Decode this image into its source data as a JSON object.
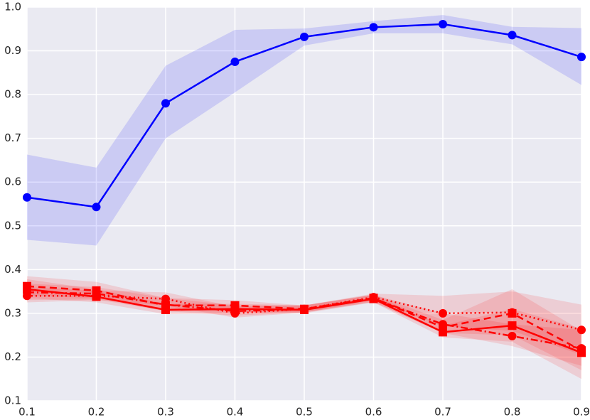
{
  "chart_data": {
    "type": "line",
    "x": [
      0.1,
      0.2,
      0.3,
      0.4,
      0.5,
      0.6,
      0.7,
      0.8,
      0.9
    ],
    "xlim": [
      0.1,
      0.9
    ],
    "xticks": [
      0.1,
      0.2,
      0.3,
      0.4,
      0.5,
      0.6,
      0.7,
      0.8,
      0.9
    ],
    "ylim": [
      0.1,
      1.0
    ],
    "yticks": [
      0.1,
      0.2,
      0.3,
      0.4,
      0.5,
      0.6,
      0.7,
      0.8,
      0.9,
      {
        "value": 1.0,
        "label": "1.0"
      }
    ],
    "grid": true,
    "series": [
      {
        "color": "#0000ff",
        "marker": "circle",
        "linestyle": "solid",
        "values": [
          0.565,
          0.543,
          0.78,
          0.875,
          0.932,
          0.954,
          0.961,
          0.936,
          0.886
        ],
        "lower": [
          0.468,
          0.455,
          0.7,
          0.805,
          0.912,
          0.94,
          0.94,
          0.915,
          0.822
        ],
        "upper": [
          0.663,
          0.633,
          0.866,
          0.948,
          0.951,
          0.968,
          0.982,
          0.955,
          0.952
        ]
      },
      {
        "color": "#ff0000",
        "marker": "square",
        "linestyle": "solid",
        "values": [
          0.355,
          0.338,
          0.308,
          0.31,
          0.308,
          0.333,
          0.257,
          0.272,
          0.21
        ],
        "lower": [
          0.335,
          0.325,
          0.298,
          0.3,
          0.3,
          0.325,
          0.245,
          0.235,
          0.15
        ],
        "upper": [
          0.378,
          0.355,
          0.322,
          0.322,
          0.318,
          0.342,
          0.272,
          0.31,
          0.265
        ]
      },
      {
        "color": "#ff0000",
        "marker": "square",
        "linestyle": "dashed",
        "values": [
          0.362,
          0.352,
          0.318,
          0.318,
          0.31,
          0.335,
          0.268,
          0.3,
          0.215
        ],
        "lower": [
          0.34,
          0.335,
          0.305,
          0.305,
          0.302,
          0.326,
          0.255,
          0.25,
          0.17
        ],
        "upper": [
          0.385,
          0.372,
          0.335,
          0.33,
          0.318,
          0.343,
          0.285,
          0.355,
          0.26
        ]
      },
      {
        "color": "#ff0000",
        "marker": "circle",
        "linestyle": "dotted",
        "values": [
          0.34,
          0.34,
          0.333,
          0.3,
          0.31,
          0.337,
          0.3,
          0.302,
          0.262
        ],
        "lower": [
          0.325,
          0.33,
          0.318,
          0.29,
          0.302,
          0.33,
          0.27,
          0.26,
          0.205
        ],
        "upper": [
          0.36,
          0.352,
          0.348,
          0.315,
          0.318,
          0.345,
          0.34,
          0.35,
          0.32
        ]
      },
      {
        "color": "#ff0000",
        "marker": "circle",
        "linestyle": "dashdot",
        "values": [
          0.348,
          0.345,
          0.32,
          0.305,
          0.309,
          0.334,
          0.275,
          0.248,
          0.22
        ],
        "lower": [
          0.33,
          0.332,
          0.305,
          0.295,
          0.302,
          0.326,
          0.255,
          0.225,
          0.18
        ],
        "upper": [
          0.368,
          0.36,
          0.335,
          0.318,
          0.318,
          0.342,
          0.3,
          0.275,
          0.262
        ]
      }
    ]
  }
}
